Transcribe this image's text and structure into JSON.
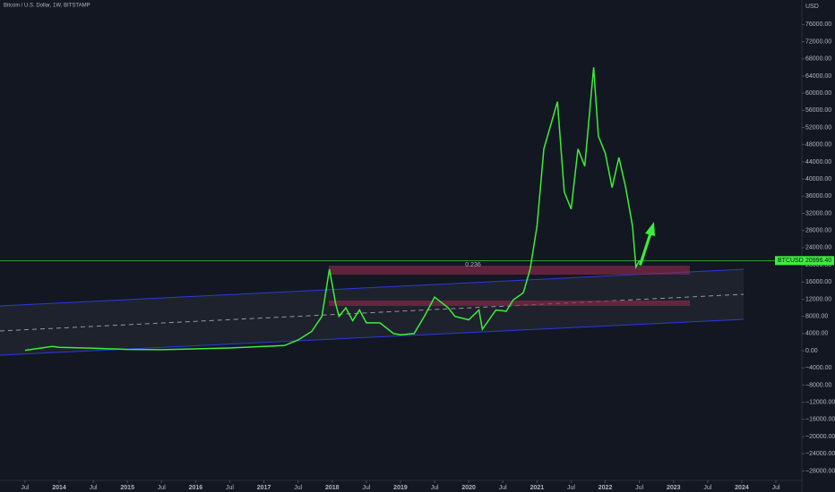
{
  "chart_data": {
    "type": "line",
    "title": "Bitcoin / U.S. Dollar, 1W, BITSTAMP",
    "y_axis_label": "USD",
    "annotation": "0.236",
    "x": [
      2013.5,
      2013.9,
      2014.0,
      2014.5,
      2015.0,
      2015.5,
      2016.0,
      2016.5,
      2017.0,
      2017.3,
      2017.5,
      2017.7,
      2017.85,
      2017.96,
      2018.05,
      2018.1,
      2018.2,
      2018.3,
      2018.4,
      2018.5,
      2018.7,
      2018.9,
      2019.0,
      2019.2,
      2019.35,
      2019.5,
      2019.7,
      2019.8,
      2020.0,
      2020.15,
      2020.2,
      2020.4,
      2020.55,
      2020.65,
      2020.8,
      2020.9,
      2021.0,
      2021.1,
      2021.3,
      2021.4,
      2021.5,
      2021.6,
      2021.7,
      2021.83,
      2021.9,
      2022.0,
      2022.1,
      2022.2,
      2022.3,
      2022.4,
      2022.45,
      2022.5
    ],
    "series": [
      {
        "name": "BTCUSD",
        "color": "#3ded3a",
        "values": [
          100,
          1000,
          800,
          600,
          300,
          250,
          430,
          650,
          1000,
          1200,
          2500,
          4500,
          8000,
          19000,
          11000,
          8000,
          10000,
          7000,
          9500,
          6500,
          6500,
          4000,
          3700,
          4000,
          8000,
          12500,
          10000,
          8000,
          7200,
          9500,
          5000,
          9500,
          9200,
          11800,
          13500,
          19000,
          29000,
          47000,
          58000,
          37000,
          33000,
          47000,
          43000,
          66000,
          50000,
          46000,
          38000,
          45000,
          38000,
          29000,
          19500,
          20996
        ],
        "last_value_label": "20996.40"
      }
    ],
    "xlim": [
      2013.134,
      2024.88
    ],
    "ylim": [
      -30200,
      81700
    ],
    "grid": false,
    "xticks": [
      {
        "value": 2013.5,
        "label": "Jul"
      },
      2014,
      {
        "value": 2014.5,
        "label": "Jul"
      },
      2015,
      {
        "value": 2015.5,
        "label": "Jul"
      },
      2016,
      {
        "value": 2016.5,
        "label": "Jul"
      },
      2017,
      {
        "value": 2017.5,
        "label": "Jul"
      },
      2018,
      {
        "value": 2018.5,
        "label": "Jul"
      },
      2019,
      {
        "value": 2019.5,
        "label": "Jul"
      },
      2020,
      {
        "value": 2020.5,
        "label": "Jul"
      },
      2021,
      {
        "value": 2021.5,
        "label": "Jul"
      },
      2022,
      {
        "value": 2022.5,
        "label": "Jul"
      },
      2023,
      {
        "value": 2023.5,
        "label": "Jul"
      },
      2024,
      {
        "value": 2024.5,
        "label": "Jul"
      }
    ],
    "yticks": [
      {
        "value": -28000,
        "label": "−28000.00"
      },
      {
        "value": -24000,
        "label": "−24000.00"
      },
      {
        "value": -20000,
        "label": "−20000.00"
      },
      {
        "value": -16000,
        "label": "−16000.00"
      },
      {
        "value": -12000,
        "label": "−12000.00"
      },
      {
        "value": -8000,
        "label": "−8000.00"
      },
      {
        "value": -4000,
        "label": "−4000.00"
      },
      {
        "value": 0,
        "label": "0.00"
      },
      {
        "value": 4000,
        "label": "4000.00"
      },
      {
        "value": 8000,
        "label": "8000.00"
      },
      {
        "value": 12000,
        "label": "12000.00"
      },
      {
        "value": 16000,
        "label": "16000.00"
      },
      {
        "value": 20000,
        "label": "20000.00"
      },
      {
        "value": 24000,
        "label": "24000.00"
      },
      {
        "value": 28000,
        "label": "28000.00"
      },
      {
        "value": 32000,
        "label": "32000.00"
      },
      {
        "value": 36000,
        "label": "36000.00"
      },
      {
        "value": 40000,
        "label": "40000.00"
      },
      {
        "value": 44000,
        "label": "44000.00"
      },
      {
        "value": 48000,
        "label": "48000.00"
      },
      {
        "value": 52000,
        "label": "52000.00"
      },
      {
        "value": 56000,
        "label": "56000.00"
      },
      {
        "value": 60000,
        "label": "60000.00"
      },
      {
        "value": 64000,
        "label": "64000.00"
      },
      {
        "value": 68000,
        "label": "68000.00"
      },
      {
        "value": 72000,
        "label": "72000.00"
      },
      {
        "value": 76000,
        "label": "76000.00"
      }
    ]
  }
}
